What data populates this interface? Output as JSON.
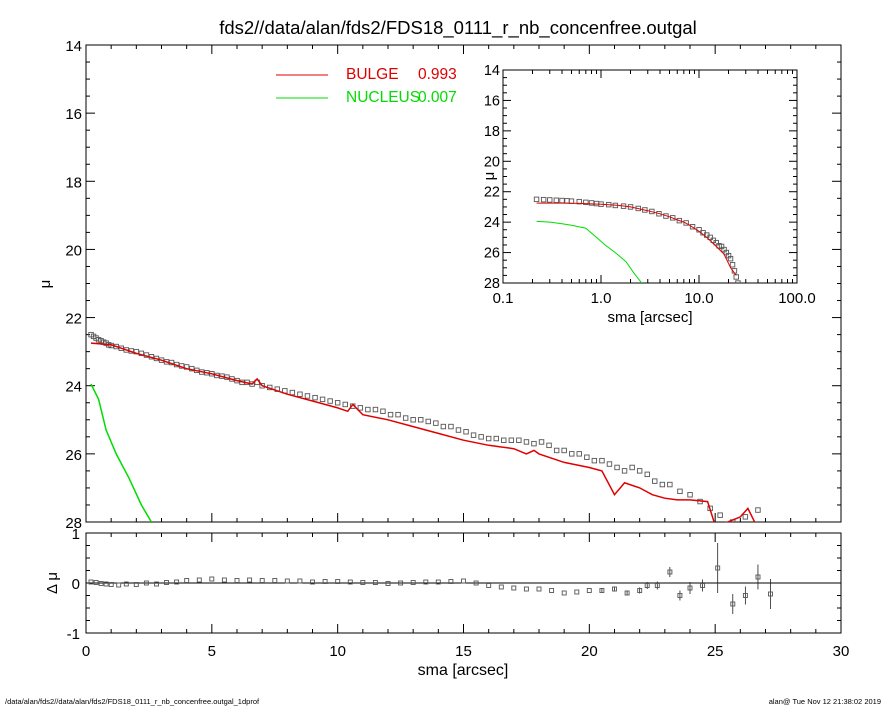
{
  "title": "fds2//data/alan/fds2/FDS18_0111_r_nb_concenfree.outgal",
  "footer_left": "/data/alan/fds2//data/alan/fds2/FDS18_0111_r_nb_concenfree.outgal_1dprof",
  "footer_right": "alan@  Tue Nov 12 21:38:02 2019",
  "colors": {
    "data": "#555555",
    "bulge": "#e00000",
    "nucleus": "#00dd00",
    "axes": "#000000"
  },
  "chart_data": [
    {
      "type": "scatter",
      "panel": "main",
      "xlabel": "",
      "ylabel": "μ",
      "xlim": [
        0,
        30
      ],
      "ylim": [
        28,
        14
      ],
      "yticks": [
        14,
        16,
        18,
        20,
        22,
        24,
        26,
        28
      ],
      "ytick_labels": [
        "14",
        "16",
        "18",
        "20",
        "22",
        "24",
        "26",
        "28"
      ],
      "legend": [
        {
          "name": "BULGE",
          "value": "0.993",
          "color": "#e00000"
        },
        {
          "name": "NUCLEUS",
          "value": "0.007",
          "color": "#00dd00"
        }
      ],
      "legend_position": "top-center",
      "series": [
        {
          "name": "data",
          "style": "open-squares",
          "x": [
            0.2,
            0.3,
            0.4,
            0.5,
            0.6,
            0.7,
            0.8,
            0.9,
            1.0,
            1.2,
            1.4,
            1.6,
            1.8,
            2.0,
            2.2,
            2.4,
            2.6,
            2.8,
            3.0,
            3.2,
            3.4,
            3.6,
            3.8,
            4.0,
            4.2,
            4.4,
            4.6,
            4.8,
            5.0,
            5.2,
            5.4,
            5.6,
            5.8,
            6.0,
            6.2,
            6.4,
            6.6,
            6.8,
            7.0,
            7.3,
            7.6,
            7.9,
            8.2,
            8.5,
            8.8,
            9.1,
            9.4,
            9.7,
            10.0,
            10.3,
            10.6,
            10.9,
            11.2,
            11.5,
            11.8,
            12.1,
            12.4,
            12.7,
            13.0,
            13.3,
            13.6,
            13.9,
            14.2,
            14.5,
            14.8,
            15.1,
            15.4,
            15.7,
            16.0,
            16.3,
            16.6,
            16.9,
            17.2,
            17.5,
            17.8,
            18.1,
            18.4,
            18.7,
            19.0,
            19.3,
            19.6,
            19.9,
            20.2,
            20.5,
            20.8,
            21.1,
            21.4,
            21.7,
            22.0,
            22.3,
            22.6,
            22.9,
            23.2,
            23.6,
            24.0,
            24.4,
            24.8,
            25.2,
            25.7,
            26.2,
            26.7,
            27.2
          ],
          "y": [
            22.5,
            22.55,
            22.6,
            22.65,
            22.68,
            22.72,
            22.75,
            22.8,
            22.82,
            22.85,
            22.9,
            22.95,
            22.98,
            23.0,
            23.05,
            23.1,
            23.15,
            23.2,
            23.25,
            23.3,
            23.32,
            23.38,
            23.42,
            23.45,
            23.5,
            23.55,
            23.6,
            23.62,
            23.65,
            23.7,
            23.72,
            23.75,
            23.8,
            23.85,
            23.9,
            23.9,
            23.95,
            23.9,
            24.0,
            24.05,
            24.1,
            24.15,
            24.2,
            24.25,
            24.3,
            24.35,
            24.4,
            24.45,
            24.5,
            24.55,
            24.6,
            24.65,
            24.7,
            24.7,
            24.75,
            24.85,
            24.85,
            24.95,
            25.0,
            25.0,
            25.05,
            25.1,
            25.2,
            25.2,
            25.3,
            25.35,
            25.45,
            25.5,
            25.55,
            25.55,
            25.6,
            25.6,
            25.6,
            25.65,
            25.7,
            25.65,
            25.75,
            25.9,
            25.9,
            26.0,
            26.0,
            26.1,
            26.2,
            26.2,
            26.3,
            26.4,
            26.5,
            26.4,
            26.5,
            26.6,
            26.8,
            26.9,
            26.9,
            27.1,
            27.2,
            27.4,
            27.6,
            27.8,
            28.0,
            27.85,
            27.65,
            28.1
          ]
        },
        {
          "name": "BULGE",
          "style": "line",
          "color": "#e00000",
          "x": [
            0.2,
            1.0,
            2.0,
            3.0,
            4.0,
            5.0,
            6.0,
            6.6,
            6.8,
            7.0,
            8.0,
            9.0,
            10.0,
            10.4,
            10.6,
            11.0,
            12.0,
            13.0,
            14.0,
            15.0,
            16.0,
            16.5,
            17.0,
            17.5,
            17.8,
            18.0,
            19.0,
            20.0,
            20.5,
            21.0,
            21.4,
            22.0,
            22.5,
            23.0,
            23.5,
            24.0,
            24.7,
            25.0,
            25.5,
            26.0,
            26.3,
            26.7
          ],
          "y": [
            22.75,
            22.8,
            23.05,
            23.25,
            23.5,
            23.65,
            23.85,
            23.95,
            23.8,
            24.0,
            24.25,
            24.45,
            24.65,
            24.75,
            24.55,
            24.85,
            25.0,
            25.2,
            25.4,
            25.6,
            25.75,
            25.8,
            25.85,
            26.0,
            25.9,
            26.0,
            26.25,
            26.4,
            26.5,
            27.2,
            26.85,
            27.0,
            27.2,
            27.3,
            27.35,
            27.35,
            27.4,
            28.1,
            28.0,
            27.85,
            27.6,
            28.2
          ]
        },
        {
          "name": "NUCLEUS",
          "style": "line",
          "color": "#00dd00",
          "x": [
            0.2,
            0.5,
            0.8,
            1.2,
            1.7,
            2.2,
            2.6
          ],
          "y": [
            23.95,
            24.4,
            25.3,
            26.0,
            26.7,
            27.5,
            28.0
          ]
        }
      ]
    },
    {
      "type": "scatter",
      "panel": "residual",
      "xlabel": "sma [arcsec]",
      "ylabel": "Δ μ",
      "xlim": [
        0,
        30
      ],
      "ylim": [
        -1,
        1
      ],
      "xticks": [
        0,
        5,
        10,
        15,
        20,
        25,
        30
      ],
      "xtick_labels": [
        "0",
        "5",
        "10",
        "15",
        "20",
        "25",
        "30"
      ],
      "yticks": [
        -1,
        0,
        1
      ],
      "ytick_labels": [
        "-1",
        "0",
        "1"
      ],
      "series": [
        {
          "name": "residual",
          "style": "open-squares-with-errorbars",
          "x": [
            0.2,
            0.4,
            0.6,
            0.8,
            1.0,
            1.3,
            1.6,
            2.0,
            2.4,
            2.8,
            3.2,
            3.6,
            4.0,
            4.5,
            5.0,
            5.5,
            6.0,
            6.5,
            7.0,
            7.5,
            8.0,
            8.5,
            9.0,
            9.5,
            10.0,
            10.5,
            11.0,
            11.5,
            12.0,
            12.5,
            13.0,
            13.5,
            14.0,
            14.5,
            15.0,
            15.5,
            16.0,
            16.5,
            17.0,
            17.5,
            18.0,
            18.5,
            19.0,
            19.5,
            20.0,
            20.5,
            21.0,
            21.5,
            22.0,
            22.3,
            22.7,
            23.2,
            23.6,
            24.0,
            24.5,
            25.1,
            25.7,
            26.2,
            26.7,
            27.2
          ],
          "y": [
            0.02,
            0.01,
            -0.01,
            -0.02,
            -0.03,
            -0.04,
            -0.02,
            -0.03,
            0.0,
            -0.02,
            0.01,
            0.02,
            0.05,
            0.06,
            0.08,
            0.06,
            0.05,
            0.06,
            0.05,
            0.05,
            0.04,
            0.04,
            0.02,
            0.03,
            0.03,
            0.02,
            0.01,
            0.01,
            -0.01,
            0.0,
            0.01,
            0.02,
            0.02,
            0.03,
            0.04,
            0.0,
            -0.05,
            -0.08,
            -0.1,
            -0.12,
            -0.12,
            -0.15,
            -0.2,
            -0.18,
            -0.15,
            -0.15,
            -0.12,
            -0.2,
            -0.15,
            -0.05,
            -0.05,
            0.22,
            -0.25,
            -0.1,
            -0.05,
            0.3,
            -0.42,
            -0.25,
            0.12,
            -0.22
          ],
          "err": [
            0.01,
            0.01,
            0.01,
            0.01,
            0.01,
            0.01,
            0.01,
            0.01,
            0.01,
            0.01,
            0.01,
            0.01,
            0.01,
            0.01,
            0.01,
            0.01,
            0.01,
            0.01,
            0.01,
            0.01,
            0.01,
            0.01,
            0.01,
            0.01,
            0.01,
            0.01,
            0.01,
            0.01,
            0.01,
            0.01,
            0.01,
            0.02,
            0.02,
            0.02,
            0.02,
            0.02,
            0.02,
            0.02,
            0.02,
            0.02,
            0.02,
            0.03,
            0.03,
            0.03,
            0.03,
            0.04,
            0.05,
            0.05,
            0.06,
            0.07,
            0.08,
            0.1,
            0.1,
            0.12,
            0.12,
            0.5,
            0.2,
            0.18,
            0.25,
            0.3
          ]
        }
      ]
    },
    {
      "type": "scatter",
      "panel": "inset",
      "xscale": "log",
      "xlabel": "sma [arcsec]",
      "ylabel": "μ",
      "xlim": [
        0.1,
        100
      ],
      "ylim": [
        28,
        14
      ],
      "xticks": [
        0.1,
        1,
        10,
        100
      ],
      "xtick_labels": [
        "0.1",
        "1.0",
        "10.0",
        "100.0"
      ],
      "yticks": [
        14,
        16,
        18,
        20,
        22,
        24,
        26,
        28
      ],
      "ytick_labels": [
        "14",
        "16",
        "18",
        "20",
        "22",
        "24",
        "26",
        "28"
      ],
      "series": [
        {
          "name": "data",
          "style": "open-squares",
          "x": [
            0.22,
            0.26,
            0.3,
            0.35,
            0.4,
            0.45,
            0.5,
            0.6,
            0.7,
            0.8,
            0.9,
            1.0,
            1.2,
            1.4,
            1.7,
            2.0,
            2.4,
            2.8,
            3.3,
            3.9,
            4.6,
            5.4,
            6.3,
            7.4,
            8.6,
            10.0,
            11.0,
            12.0,
            13.0,
            14.0,
            15.0,
            16.0,
            17.0,
            18.0,
            19.0,
            20.0,
            21.0,
            22.0,
            23.0,
            24.0,
            25.0
          ],
          "y": [
            22.5,
            22.52,
            22.54,
            22.56,
            22.58,
            22.6,
            22.62,
            22.65,
            22.7,
            22.74,
            22.78,
            22.82,
            22.85,
            22.9,
            22.95,
            23.0,
            23.1,
            23.2,
            23.3,
            23.45,
            23.6,
            23.72,
            23.9,
            24.05,
            24.3,
            24.5,
            24.7,
            24.85,
            25.0,
            25.2,
            25.35,
            25.55,
            25.6,
            25.8,
            26.0,
            26.2,
            26.4,
            26.8,
            27.2,
            27.6,
            28.0
          ]
        },
        {
          "name": "BULGE",
          "style": "line",
          "color": "#e00000",
          "x": [
            0.22,
            0.4,
            0.6,
            0.8,
            1.0,
            1.5,
            2.0,
            3.0,
            4.0,
            5.0,
            6.0,
            7.0,
            8.0,
            10.0,
            12.0,
            15.0,
            18.0,
            21.0,
            24.0
          ],
          "y": [
            22.75,
            22.75,
            22.77,
            22.8,
            22.82,
            22.9,
            23.0,
            23.25,
            23.45,
            23.65,
            23.85,
            24.0,
            24.2,
            24.6,
            25.0,
            25.6,
            26.1,
            27.0,
            27.5
          ]
        },
        {
          "name": "NUCLEUS",
          "style": "line",
          "color": "#00dd00",
          "x": [
            0.22,
            0.3,
            0.4,
            0.5,
            0.7,
            0.9,
            1.1,
            1.4,
            1.8,
            2.2,
            2.6
          ],
          "y": [
            23.95,
            24.0,
            24.1,
            24.2,
            24.4,
            25.0,
            25.5,
            26.0,
            26.6,
            27.4,
            28.0
          ]
        }
      ]
    }
  ]
}
